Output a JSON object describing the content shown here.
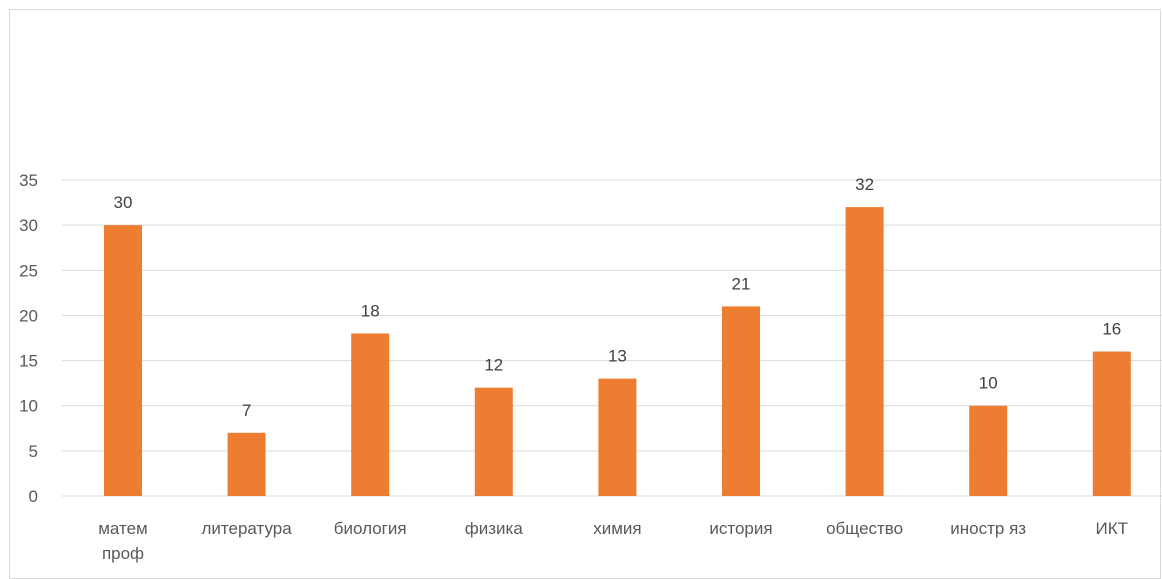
{
  "chart_data": {
    "type": "bar",
    "categories": [
      [
        "матем",
        "проф"
      ],
      [
        "литература"
      ],
      [
        "биология"
      ],
      [
        "физика"
      ],
      [
        "химия"
      ],
      [
        "история"
      ],
      [
        "общество"
      ],
      [
        "иностр яз"
      ],
      [
        "ИКТ"
      ]
    ],
    "values": [
      30,
      7,
      18,
      12,
      13,
      21,
      32,
      10,
      16
    ],
    "title": "",
    "xlabel": "",
    "ylabel": "",
    "ylim": [
      0,
      35
    ],
    "yticks": [
      0,
      5,
      10,
      15,
      20,
      25,
      30,
      35
    ],
    "grid": true,
    "data_labels": true,
    "bar_color": "#ed7d31",
    "grid_color": "#d9d9d9"
  }
}
